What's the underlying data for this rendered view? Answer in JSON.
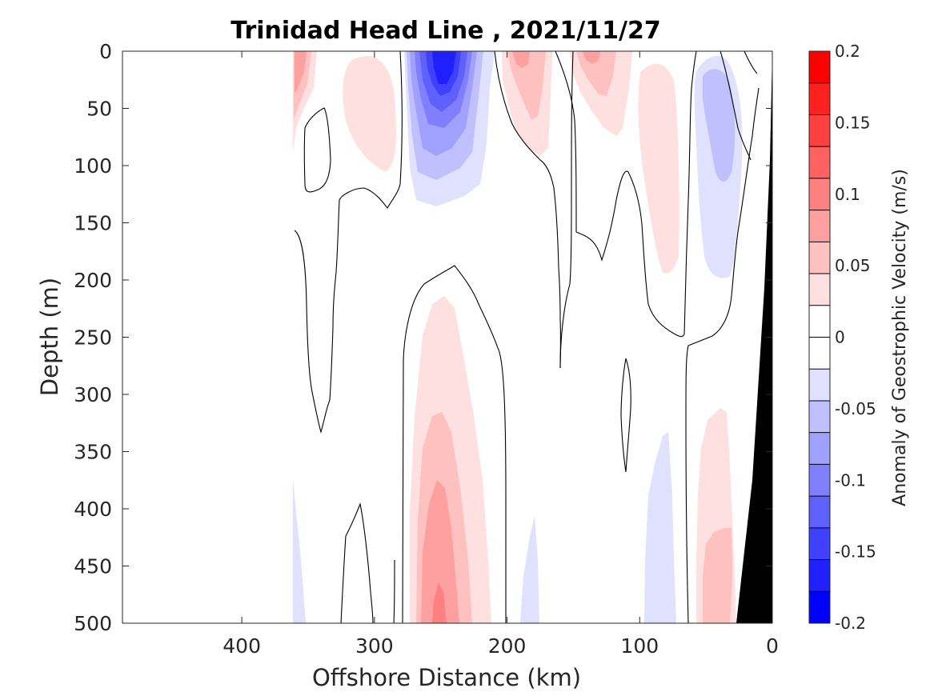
{
  "chart_data": {
    "type": "contourf",
    "title": "Trinidad Head Line , 2021/11/27",
    "xlabel": "Offshore Distance (km)",
    "ylabel": "Depth (m)",
    "xlim": [
      490,
      0
    ],
    "ylim": [
      500,
      0
    ],
    "x_reversed": true,
    "y_reversed": true,
    "xticks": [
      400,
      300,
      200,
      100,
      0
    ],
    "yticks": [
      0,
      50,
      100,
      150,
      200,
      250,
      300,
      350,
      400,
      450,
      500
    ],
    "colorbar": {
      "label": "Anomaly of Geostrophic Velocity (m/s)",
      "range": [
        -0.2,
        0.2
      ],
      "level_step": 0.025,
      "ticks": [
        0.2,
        0.15,
        0.1,
        0.05,
        0,
        -0.05,
        -0.1,
        -0.15,
        -0.2
      ],
      "tick_labels": [
        "0.2",
        "0.15",
        "0.1",
        "0.05",
        "0",
        "-0.05",
        "-0.1",
        "-0.15",
        "-0.2"
      ],
      "colors_top_to_bottom": [
        "#ff0000",
        "#ff2020",
        "#ff4040",
        "#ff6060",
        "#ff8080",
        "#ffa0a0",
        "#ffc0c0",
        "#ffe0e0",
        "#ffffff",
        "#ffffff",
        "#e0e0ff",
        "#c0c0ff",
        "#a0a0ff",
        "#8080ff",
        "#6060ff",
        "#4040ff",
        "#2020ff",
        "#0000ff"
      ]
    },
    "bathymetry_color": "#000000",
    "features": [
      {
        "kind": "positive_core",
        "x_km": 360,
        "depth_m": 30,
        "max_anomaly": 0.1
      },
      {
        "kind": "positive_core",
        "x_km": 310,
        "depth_m": 60,
        "max_anomaly": 0.05
      },
      {
        "kind": "negative_core",
        "x_km": 250,
        "depth_m": 40,
        "max_anomaly": -0.15
      },
      {
        "kind": "positive_core",
        "x_km": 190,
        "depth_m": 40,
        "max_anomaly": 0.1
      },
      {
        "kind": "positive_core",
        "x_km": 145,
        "depth_m": 40,
        "max_anomaly": 0.1
      },
      {
        "kind": "positive_core",
        "x_km": 90,
        "depth_m": 120,
        "max_anomaly": 0.05
      },
      {
        "kind": "negative_core",
        "x_km": 40,
        "depth_m": 90,
        "max_anomaly": -0.075
      },
      {
        "kind": "positive_core",
        "x_km": 245,
        "depth_m": 480,
        "max_anomaly": 0.125
      },
      {
        "kind": "negative_core",
        "x_km": 85,
        "depth_m": 450,
        "max_anomaly": -0.05
      },
      {
        "kind": "positive_core",
        "x_km": 45,
        "depth_m": 450,
        "max_anomaly": 0.075
      },
      {
        "kind": "negative_core",
        "x_km": 185,
        "depth_m": 470,
        "max_anomaly": -0.05
      },
      {
        "kind": "negative_core",
        "x_km": 355,
        "depth_m": 460,
        "max_anomaly": -0.05
      }
    ]
  },
  "colors": {
    "axis": "#262626",
    "contour_line": "#000000"
  }
}
